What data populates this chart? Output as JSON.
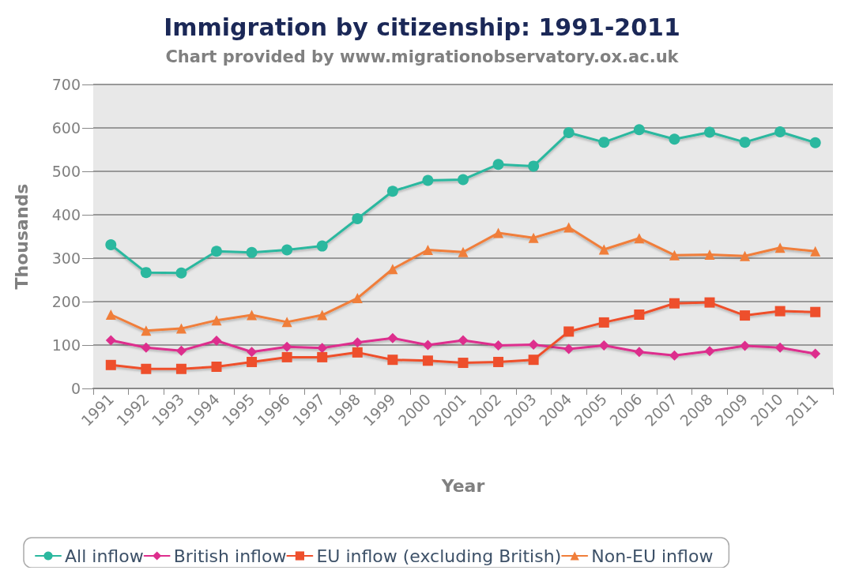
{
  "chart_data": {
    "type": "line",
    "title": "Immigration by citizenship: 1991-2011",
    "subtitle": "Chart provided by www.migrationobservatory.ox.ac.uk",
    "xlabel": "Year",
    "ylabel": "Thousands",
    "categories": [
      "1991",
      "1992",
      "1993",
      "1994",
      "1995",
      "1996",
      "1997",
      "1998",
      "1999",
      "2000",
      "2001",
      "2002",
      "2003",
      "2004",
      "2005",
      "2006",
      "2007",
      "2008",
      "2009",
      "2010",
      "2011"
    ],
    "series": [
      {
        "name": "All inflow",
        "color": "#2bb89f",
        "marker": "circle",
        "values": [
          331,
          267,
          266,
          316,
          313,
          319,
          328,
          391,
          454,
          479,
          481,
          516,
          512,
          589,
          567,
          596,
          574,
          590,
          567,
          591,
          566
        ]
      },
      {
        "name": "British inflow",
        "color": "#dd2e8d",
        "marker": "diamond",
        "values": [
          111,
          94,
          87,
          110,
          84,
          96,
          93,
          106,
          116,
          100,
          111,
          99,
          101,
          91,
          99,
          84,
          76,
          86,
          98,
          94,
          80
        ]
      },
      {
        "name": "EU inflow (excluding British)",
        "color": "#ee4f2c",
        "marker": "square",
        "values": [
          54,
          45,
          45,
          50,
          61,
          72,
          72,
          83,
          66,
          64,
          59,
          61,
          66,
          131,
          152,
          170,
          196,
          198,
          168,
          178,
          176
        ]
      },
      {
        "name": "Non-EU inflow",
        "color": "#f07e3a",
        "marker": "triangle",
        "values": [
          170,
          133,
          138,
          157,
          169,
          153,
          169,
          208,
          275,
          319,
          314,
          358,
          347,
          371,
          320,
          346,
          307,
          308,
          305,
          324,
          316
        ]
      }
    ],
    "ylim": [
      0,
      700
    ],
    "yticks": [
      0,
      100,
      200,
      300,
      400,
      500,
      600,
      700
    ],
    "grid": "y",
    "legend": "bottom",
    "line_style": "solid"
  }
}
